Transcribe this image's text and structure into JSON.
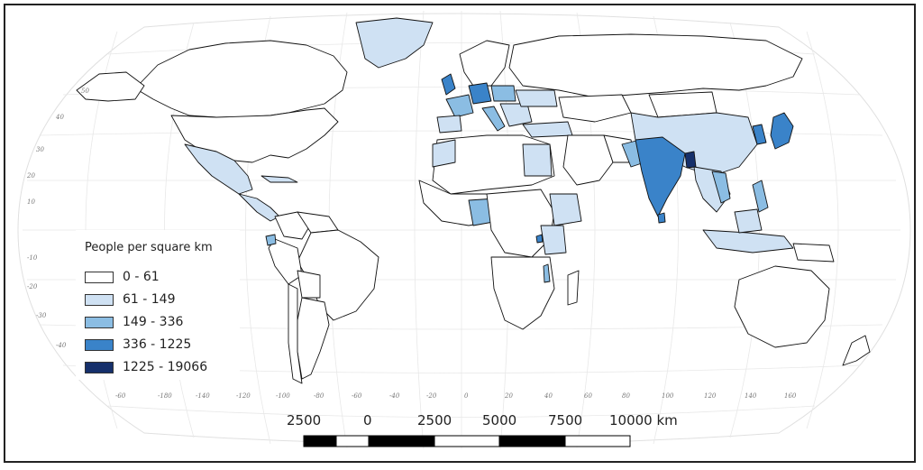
{
  "legend": {
    "title": "People per square km",
    "classes": [
      {
        "label": "0 - 61",
        "color": "#ffffff"
      },
      {
        "label": "61 - 149",
        "color": "#cfe1f3"
      },
      {
        "label": "149 - 336",
        "color": "#8bbde3"
      },
      {
        "label": "336 - 1225",
        "color": "#3a83c9"
      },
      {
        "label": "1225 - 19066",
        "color": "#16306b"
      }
    ]
  },
  "scale_bar": {
    "labels": [
      "2500",
      "0",
      "2500",
      "5000",
      "7500",
      "10000 km"
    ]
  },
  "graticule": {
    "longitude_labels": [
      "-60",
      "-180",
      "-140",
      "-120",
      "-100",
      "-80",
      "-60",
      "-40",
      "-20",
      "0",
      "20",
      "40",
      "60",
      "80",
      "100",
      "120",
      "140",
      "160"
    ],
    "latitude_labels": [
      "50",
      "40",
      "30",
      "20",
      "10",
      "-10",
      "-20",
      "-30",
      "-40"
    ]
  },
  "colors": {
    "water": "#ffffff",
    "graticule": "#e6e6e6",
    "border": "#111111"
  }
}
